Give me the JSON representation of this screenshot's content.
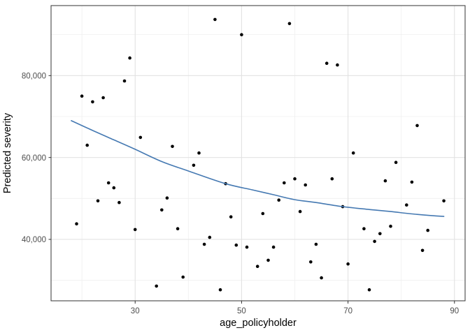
{
  "figure": {
    "kind": "ggplot-scatter-with-smooth",
    "background": "#ffffff"
  },
  "style": {
    "grid_major_color": "#e2e2e2",
    "grid_minor_color": "#efefef",
    "panel_border_color": "#333333",
    "tick_color": "#333333",
    "tick_label_color": "#4d4d4d",
    "axis_title_color": "#000000",
    "point_color": "#000000",
    "smooth_line_color": "#4579b2"
  },
  "chart_data": {
    "type": "scatter",
    "title": "",
    "xlabel": "age_policyholder",
    "ylabel": "Predicted severity",
    "xlim": [
      14.2,
      92.0
    ],
    "ylim": [
      25000,
      97100
    ],
    "x_major_ticks": [
      30,
      50,
      70,
      90
    ],
    "x_minor_ticks": [
      20,
      40,
      60,
      80
    ],
    "y_major_ticks": [
      40000,
      60000,
      80000
    ],
    "y_major_tick_labels": [
      "40,000",
      "60,000",
      "80,000"
    ],
    "y_minor_ticks": [
      30000,
      50000,
      70000,
      90000
    ],
    "grid": "major+minor",
    "legend_position": "none",
    "series": [
      {
        "name": "predicted-severity-points",
        "type": "scatter",
        "points": [
          [
            19,
            43800
          ],
          [
            20,
            75000
          ],
          [
            21,
            63000
          ],
          [
            22,
            73600
          ],
          [
            23,
            49400
          ],
          [
            24,
            74600
          ],
          [
            25,
            53800
          ],
          [
            26,
            52600
          ],
          [
            27,
            49000
          ],
          [
            28,
            78700
          ],
          [
            29,
            84300
          ],
          [
            30,
            42400
          ],
          [
            31,
            64900
          ],
          [
            34,
            28600
          ],
          [
            35,
            47200
          ],
          [
            36,
            50100
          ],
          [
            37,
            62700
          ],
          [
            38,
            42600
          ],
          [
            39,
            30800
          ],
          [
            41,
            58100
          ],
          [
            42,
            61100
          ],
          [
            43,
            38800
          ],
          [
            44,
            40500
          ],
          [
            45,
            93700
          ],
          [
            46,
            27700
          ],
          [
            47,
            53600
          ],
          [
            48,
            45500
          ],
          [
            49,
            38600
          ],
          [
            50,
            90000
          ],
          [
            51,
            38100
          ],
          [
            53,
            33400
          ],
          [
            54,
            46300
          ],
          [
            55,
            34900
          ],
          [
            56,
            38100
          ],
          [
            57,
            49600
          ],
          [
            58,
            53800
          ],
          [
            59,
            92700
          ],
          [
            60,
            54800
          ],
          [
            61,
            46800
          ],
          [
            62,
            53300
          ],
          [
            63,
            34500
          ],
          [
            64,
            38800
          ],
          [
            65,
            30600
          ],
          [
            66,
            83000
          ],
          [
            67,
            54800
          ],
          [
            68,
            82600
          ],
          [
            69,
            48000
          ],
          [
            70,
            34000
          ],
          [
            71,
            61100
          ],
          [
            73,
            42600
          ],
          [
            74,
            27700
          ],
          [
            75,
            39500
          ],
          [
            76,
            41400
          ],
          [
            77,
            54300
          ],
          [
            78,
            43200
          ],
          [
            79,
            58800
          ],
          [
            81,
            48400
          ],
          [
            82,
            54000
          ],
          [
            83,
            67800
          ],
          [
            84,
            37300
          ],
          [
            85,
            42200
          ],
          [
            88,
            49400
          ]
        ]
      },
      {
        "name": "loess-smooth",
        "type": "line",
        "points": [
          [
            18,
            69000
          ],
          [
            22,
            66600
          ],
          [
            26,
            64300
          ],
          [
            30,
            62000
          ],
          [
            35,
            59000
          ],
          [
            40,
            56700
          ],
          [
            47,
            53600
          ],
          [
            52,
            52100
          ],
          [
            56,
            50900
          ],
          [
            60,
            49700
          ],
          [
            64,
            49000
          ],
          [
            69,
            48000
          ],
          [
            74,
            47300
          ],
          [
            78,
            46800
          ],
          [
            83,
            46100
          ],
          [
            88,
            45600
          ]
        ]
      }
    ]
  }
}
